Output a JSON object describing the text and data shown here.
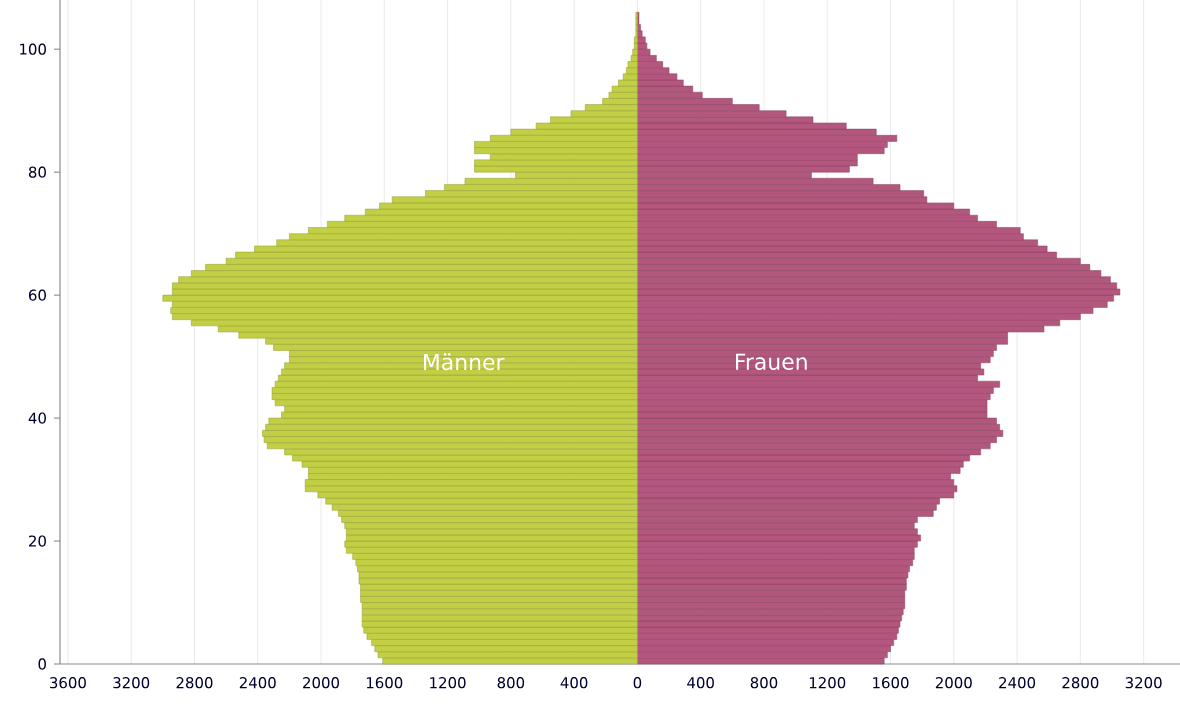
{
  "chart_data": {
    "type": "bar",
    "orientation": "horizontal",
    "stacked": true,
    "x": [
      0,
      1,
      2,
      3,
      4,
      5,
      6,
      7,
      8,
      9,
      10,
      11,
      12,
      13,
      14,
      15,
      16,
      17,
      18,
      19,
      20,
      21,
      22,
      23,
      24,
      25,
      26,
      27,
      28,
      29,
      30,
      31,
      32,
      33,
      34,
      35,
      36,
      37,
      38,
      39,
      40,
      41,
      42,
      43,
      44,
      45,
      46,
      47,
      48,
      49,
      50,
      51,
      52,
      53,
      54,
      55,
      56,
      57,
      58,
      59,
      60,
      61,
      62,
      63,
      64,
      65,
      66,
      67,
      68,
      69,
      70,
      71,
      72,
      73,
      74,
      75,
      76,
      77,
      78,
      79,
      80,
      81,
      82,
      83,
      84,
      85,
      86,
      87,
      88,
      89,
      90,
      91,
      92,
      93,
      94,
      95,
      96,
      97,
      98,
      99,
      100,
      101,
      102,
      103,
      104,
      105
    ],
    "series": [
      {
        "name": "Männer",
        "color": "#c2cf45",
        "values": [
          -1610,
          -1640,
          -1660,
          -1680,
          -1710,
          -1730,
          -1740,
          -1740,
          -1740,
          -1740,
          -1750,
          -1750,
          -1750,
          -1760,
          -1760,
          -1770,
          -1780,
          -1800,
          -1840,
          -1850,
          -1840,
          -1840,
          -1850,
          -1870,
          -1890,
          -1930,
          -1970,
          -2020,
          -2100,
          -2100,
          -2080,
          -2080,
          -2120,
          -2180,
          -2230,
          -2340,
          -2360,
          -2370,
          -2350,
          -2330,
          -2250,
          -2230,
          -2290,
          -2310,
          -2310,
          -2290,
          -2270,
          -2250,
          -2230,
          -2200,
          -2200,
          -2300,
          -2350,
          -2520,
          -2650,
          -2820,
          -2940,
          -2950,
          -2940,
          -3000,
          -2940,
          -2940,
          -2900,
          -2820,
          -2730,
          -2600,
          -2540,
          -2420,
          -2280,
          -2200,
          -2080,
          -1960,
          -1850,
          -1720,
          -1630,
          -1550,
          -1340,
          -1220,
          -1090,
          -770,
          -1030,
          -1030,
          -930,
          -1030,
          -1030,
          -930,
          -800,
          -640,
          -550,
          -420,
          -330,
          -220,
          -180,
          -160,
          -120,
          -90,
          -70,
          -60,
          -40,
          -30,
          -20,
          -20,
          -10,
          -10,
          -10,
          -10
        ]
      },
      {
        "name": "Frauen",
        "color": "#b3577e",
        "values": [
          1560,
          1580,
          1600,
          1620,
          1640,
          1650,
          1660,
          1670,
          1680,
          1690,
          1690,
          1690,
          1700,
          1700,
          1710,
          1720,
          1740,
          1750,
          1750,
          1770,
          1790,
          1770,
          1750,
          1770,
          1870,
          1890,
          1910,
          2000,
          2020,
          2000,
          1980,
          2040,
          2060,
          2100,
          2170,
          2230,
          2270,
          2310,
          2290,
          2270,
          2210,
          2210,
          2210,
          2230,
          2250,
          2290,
          2150,
          2190,
          2170,
          2230,
          2250,
          2270,
          2340,
          2340,
          2570,
          2670,
          2800,
          2880,
          2970,
          3010,
          3050,
          3030,
          2990,
          2930,
          2860,
          2800,
          2650,
          2590,
          2530,
          2440,
          2420,
          2270,
          2150,
          2100,
          2000,
          1830,
          1810,
          1660,
          1490,
          1100,
          1340,
          1390,
          1390,
          1560,
          1580,
          1640,
          1510,
          1320,
          1110,
          940,
          770,
          600,
          410,
          350,
          290,
          250,
          200,
          160,
          120,
          80,
          60,
          50,
          30,
          20,
          10,
          10
        ]
      }
    ],
    "xlim": [
      -3650,
      3430
    ],
    "xticks": [
      {
        "value": -3600,
        "label": "3600"
      },
      {
        "value": -3200,
        "label": "3200"
      },
      {
        "value": -2800,
        "label": "2800"
      },
      {
        "value": -2400,
        "label": "2400"
      },
      {
        "value": -2000,
        "label": "2000"
      },
      {
        "value": -1600,
        "label": "1600"
      },
      {
        "value": -1200,
        "label": "1200"
      },
      {
        "value": -800,
        "label": "800"
      },
      {
        "value": -400,
        "label": "400"
      },
      0,
      400,
      800,
      1200,
      1600,
      2000,
      2400,
      2800,
      3200
    ],
    "ylim": [
      0,
      108
    ],
    "yticks": [
      0,
      20,
      40,
      60,
      80,
      100
    ],
    "grid": "x"
  }
}
